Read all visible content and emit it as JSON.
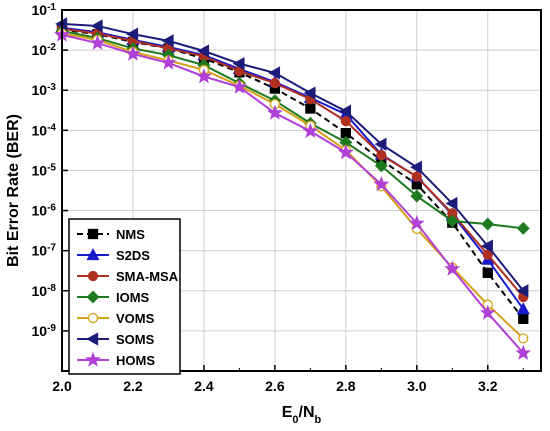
{
  "chart_data": {
    "type": "line",
    "title": "",
    "xlabel": {
      "main": "E",
      "sub1": "0",
      "mid": "/N",
      "sub2": "b"
    },
    "ylabel": "Bit Error Rate (BER)",
    "xlim": [
      2.0,
      3.35
    ],
    "ylim": [
      1e-10,
      0.1
    ],
    "yscale": "log",
    "grid": true,
    "legend_position": "bottom-left",
    "x_ticks": [
      "2.0",
      "2.2",
      "2.4",
      "2.6",
      "2.8",
      "3.0",
      "3.2"
    ],
    "y_ticks": [
      {
        "base": "10",
        "exp": "-1"
      },
      {
        "base": "10",
        "exp": "-2"
      },
      {
        "base": "10",
        "exp": "-3"
      },
      {
        "base": "10",
        "exp": "-4"
      },
      {
        "base": "10",
        "exp": "-5"
      },
      {
        "base": "10",
        "exp": "-6"
      },
      {
        "base": "10",
        "exp": "-7"
      },
      {
        "base": "10",
        "exp": "-8"
      },
      {
        "base": "10",
        "exp": "-9"
      }
    ],
    "x": [
      2.0,
      2.1,
      2.2,
      2.3,
      2.4,
      2.5,
      2.6,
      2.7,
      2.8,
      2.9,
      3.0,
      3.1,
      3.2,
      3.3
    ],
    "series": [
      {
        "name": "NMS",
        "color": "#000000",
        "marker": "square",
        "dash": "6,4",
        "fill": true,
        "values": [
          0.032,
          0.025,
          0.016,
          0.011,
          0.0062,
          0.0028,
          0.0011,
          0.00035,
          8.5e-05,
          1.8e-05,
          4.5e-06,
          5e-07,
          2.8e-08,
          2e-09
        ]
      },
      {
        "name": "S2DS",
        "color": "#1a1acc",
        "marker": "triangle-up",
        "dash": "",
        "fill": true,
        "values": [
          0.036,
          0.028,
          0.018,
          0.012,
          0.0075,
          0.0034,
          0.0016,
          0.00065,
          0.00025,
          2.5e-05,
          7e-06,
          8e-07,
          6e-08,
          3.5e-09
        ]
      },
      {
        "name": "SMA-MSA",
        "color": "#b03020",
        "marker": "circle",
        "dash": "",
        "fill": true,
        "values": [
          0.034,
          0.026,
          0.017,
          0.011,
          0.007,
          0.003,
          0.0015,
          0.0006,
          0.00017,
          2.4e-05,
          7e-06,
          8.5e-07,
          8e-08,
          7e-09
        ]
      },
      {
        "name": "IOMS",
        "color": "#1e7a1e",
        "marker": "diamond",
        "dash": "",
        "fill": true,
        "values": [
          0.03,
          0.02,
          0.011,
          0.0075,
          0.0042,
          0.0015,
          0.00055,
          0.00015,
          5e-05,
          1.3e-05,
          2.3e-06,
          5.5e-07,
          4.6e-07,
          3.6e-07
        ]
      },
      {
        "name": "VOMS",
        "color": "#d4a017",
        "marker": "circle",
        "dash": "",
        "fill": false,
        "values": [
          0.026,
          0.018,
          0.009,
          0.0055,
          0.0032,
          0.0013,
          0.00045,
          0.00013,
          3.2e-05,
          4e-06,
          3.5e-07,
          3.8e-08,
          4.5e-09,
          6.5e-10
        ]
      },
      {
        "name": "SOMS",
        "color": "#1c1c7a",
        "marker": "triangle-left",
        "dash": "",
        "fill": true,
        "values": [
          0.045,
          0.04,
          0.025,
          0.017,
          0.0095,
          0.0046,
          0.0027,
          0.00085,
          0.0003,
          4.5e-05,
          1.2e-05,
          1.5e-06,
          1.3e-07,
          1e-08
        ]
      },
      {
        "name": "HOMS",
        "color": "#b040d8",
        "marker": "star",
        "dash": "",
        "fill": true,
        "values": [
          0.024,
          0.015,
          0.008,
          0.0048,
          0.0022,
          0.0012,
          0.00027,
          9.5e-05,
          2.8e-05,
          4.5e-06,
          4.8e-07,
          3.5e-08,
          2.8e-09,
          2.8e-10
        ]
      }
    ]
  }
}
